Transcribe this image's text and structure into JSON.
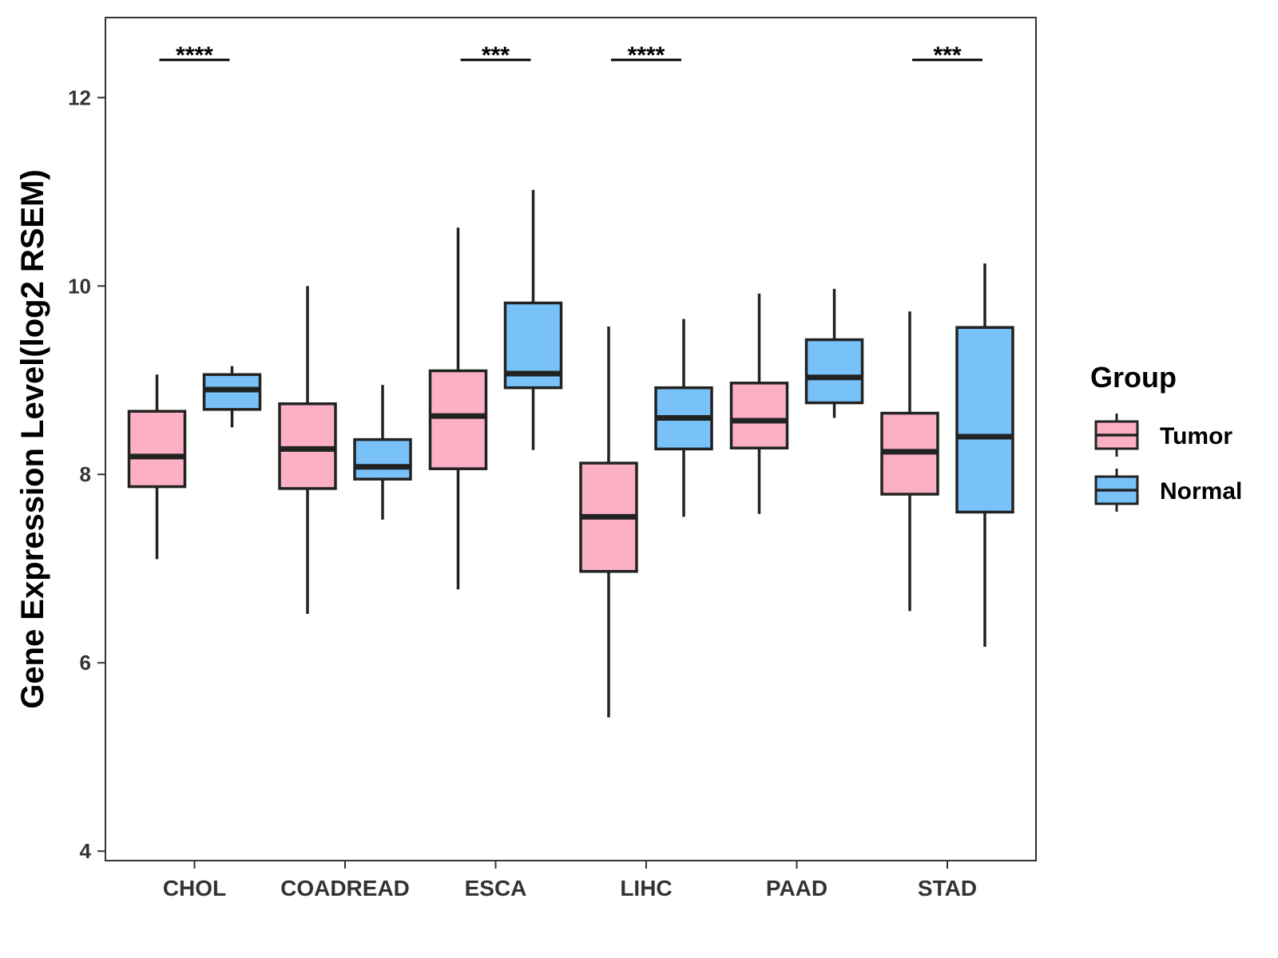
{
  "chart_data": {
    "type": "box",
    "ylabel": "Gene Expression Level(log2 RSEM)",
    "xlabel": "",
    "ylim": [
      3.9,
      12.85
    ],
    "yticks": [
      4,
      6,
      8,
      10,
      12
    ],
    "categories": [
      "CHOL",
      "COADREAD",
      "ESCA",
      "LIHC",
      "PAAD",
      "STAD"
    ],
    "legend": {
      "title": "Group",
      "position": "right",
      "entries": [
        "Tumor",
        "Normal"
      ]
    },
    "colors": {
      "Tumor": "#FBB1C3",
      "Normal": "#78C1F9",
      "stroke": "#222222"
    },
    "grid": false,
    "series": [
      {
        "name": "Tumor",
        "boxes": [
          {
            "category": "CHOL",
            "whisker_low": 7.1,
            "q1": 7.87,
            "median": 8.19,
            "q3": 8.67,
            "whisker_high": 9.06
          },
          {
            "category": "COADREAD",
            "whisker_low": 6.52,
            "q1": 7.85,
            "median": 8.27,
            "q3": 8.75,
            "whisker_high": 10.0
          },
          {
            "category": "ESCA",
            "whisker_low": 6.78,
            "q1": 8.06,
            "median": 8.62,
            "q3": 9.1,
            "whisker_high": 10.62
          },
          {
            "category": "LIHC",
            "whisker_low": 5.42,
            "q1": 6.97,
            "median": 7.55,
            "q3": 8.12,
            "whisker_high": 9.57
          },
          {
            "category": "PAAD",
            "whisker_low": 7.58,
            "q1": 8.28,
            "median": 8.57,
            "q3": 8.97,
            "whisker_high": 9.92
          },
          {
            "category": "STAD",
            "whisker_low": 6.55,
            "q1": 7.79,
            "median": 8.24,
            "q3": 8.65,
            "whisker_high": 9.73
          }
        ]
      },
      {
        "name": "Normal",
        "boxes": [
          {
            "category": "CHOL",
            "whisker_low": 8.5,
            "q1": 8.69,
            "median": 8.9,
            "q3": 9.06,
            "whisker_high": 9.15
          },
          {
            "category": "COADREAD",
            "whisker_low": 7.52,
            "q1": 7.95,
            "median": 8.08,
            "q3": 8.37,
            "whisker_high": 8.95
          },
          {
            "category": "ESCA",
            "whisker_low": 8.26,
            "q1": 8.92,
            "median": 9.07,
            "q3": 9.82,
            "whisker_high": 11.02
          },
          {
            "category": "LIHC",
            "whisker_low": 7.55,
            "q1": 8.27,
            "median": 8.6,
            "q3": 8.92,
            "whisker_high": 9.65
          },
          {
            "category": "PAAD",
            "whisker_low": 8.6,
            "q1": 8.76,
            "median": 9.03,
            "q3": 9.43,
            "whisker_high": 9.97
          },
          {
            "category": "STAD",
            "whisker_low": 6.17,
            "q1": 7.6,
            "median": 8.4,
            "q3": 9.56,
            "whisker_high": 10.24
          }
        ]
      }
    ],
    "annotations": [
      {
        "category": "CHOL",
        "label": "****"
      },
      {
        "category": "ESCA",
        "label": "***"
      },
      {
        "category": "LIHC",
        "label": "****"
      },
      {
        "category": "STAD",
        "label": "***"
      }
    ]
  }
}
